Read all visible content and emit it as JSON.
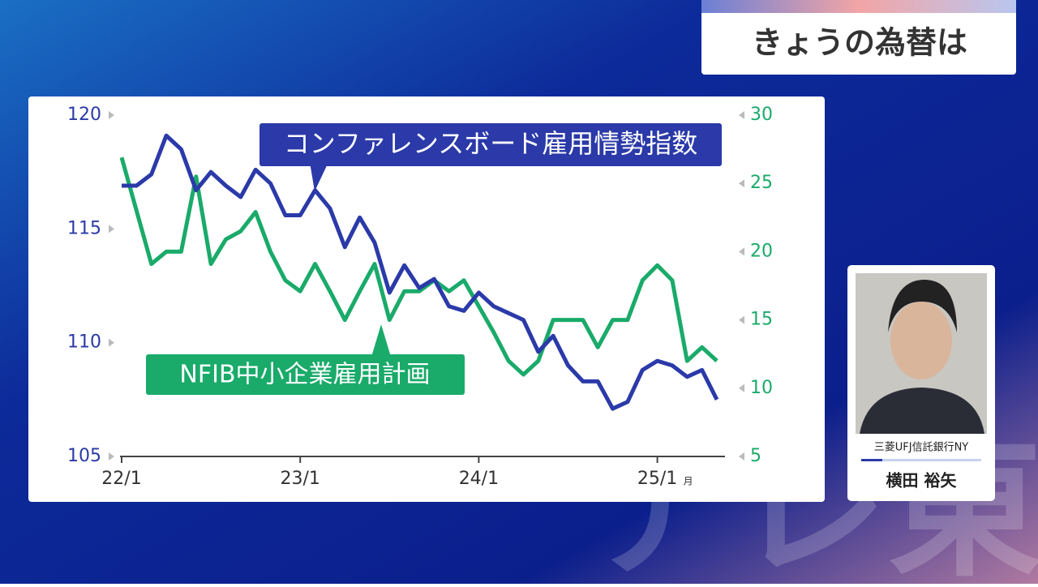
{
  "header": {
    "title": "きょうの為替は"
  },
  "speaker": {
    "company": "三菱UFJ信託銀行NY",
    "name": "横田 裕矢"
  },
  "watermark": "テレ東",
  "chart_data": {
    "type": "line",
    "categories": [
      "22/1",
      null,
      null,
      null,
      null,
      null,
      null,
      null,
      null,
      null,
      null,
      null,
      "23/1",
      null,
      null,
      null,
      null,
      null,
      null,
      null,
      null,
      null,
      null,
      null,
      "24/1",
      null,
      null,
      null,
      null,
      null,
      null,
      null,
      null,
      null,
      null,
      null,
      "25/1",
      null,
      null,
      null,
      null
    ],
    "x_unit": "月",
    "ylim": [
      105,
      120
    ],
    "yticks": [
      105,
      110,
      115,
      120
    ],
    "y2lim": [
      5,
      30
    ],
    "y2ticks": [
      5,
      10,
      15,
      20,
      25,
      30
    ],
    "annotations": [
      "コンファレンスボード雇用情勢指数",
      "NFIB中小企業雇用計画"
    ],
    "series": [
      {
        "name": "コンファレンスボード雇用情勢指数",
        "color": "#2b3aa8",
        "axis": "y",
        "values": [
          116.9,
          116.9,
          117.4,
          119.1,
          118.5,
          116.7,
          117.5,
          116.9,
          116.4,
          117.6,
          117.0,
          115.6,
          115.6,
          116.7,
          115.9,
          114.2,
          115.5,
          114.4,
          112.2,
          113.4,
          112.4,
          112.8,
          111.6,
          111.4,
          112.2,
          111.6,
          111.3,
          111.0,
          109.6,
          110.3,
          109.0,
          108.3,
          108.3,
          107.1,
          107.4,
          108.8,
          109.2,
          109.0,
          108.5,
          108.8,
          107.5
        ]
      },
      {
        "name": "NFIB中小企業雇用計画",
        "color": "#1aaa6a",
        "axis": "y2",
        "values": [
          26.9,
          23,
          19.1,
          20.0,
          20.0,
          25.5,
          19.1,
          20.9,
          21.5,
          22.9,
          20.0,
          17.9,
          17.1,
          19.1,
          17.1,
          15.0,
          17.1,
          19.1,
          15.0,
          17.1,
          17.1,
          17.9,
          17.1,
          17.9,
          16.0,
          14.1,
          12.0,
          11.0,
          12.0,
          15.0,
          15.0,
          15.0,
          13.0,
          15.0,
          15.0,
          17.9,
          19.0,
          17.9,
          12.0,
          13.0,
          12.0
        ]
      }
    ]
  }
}
